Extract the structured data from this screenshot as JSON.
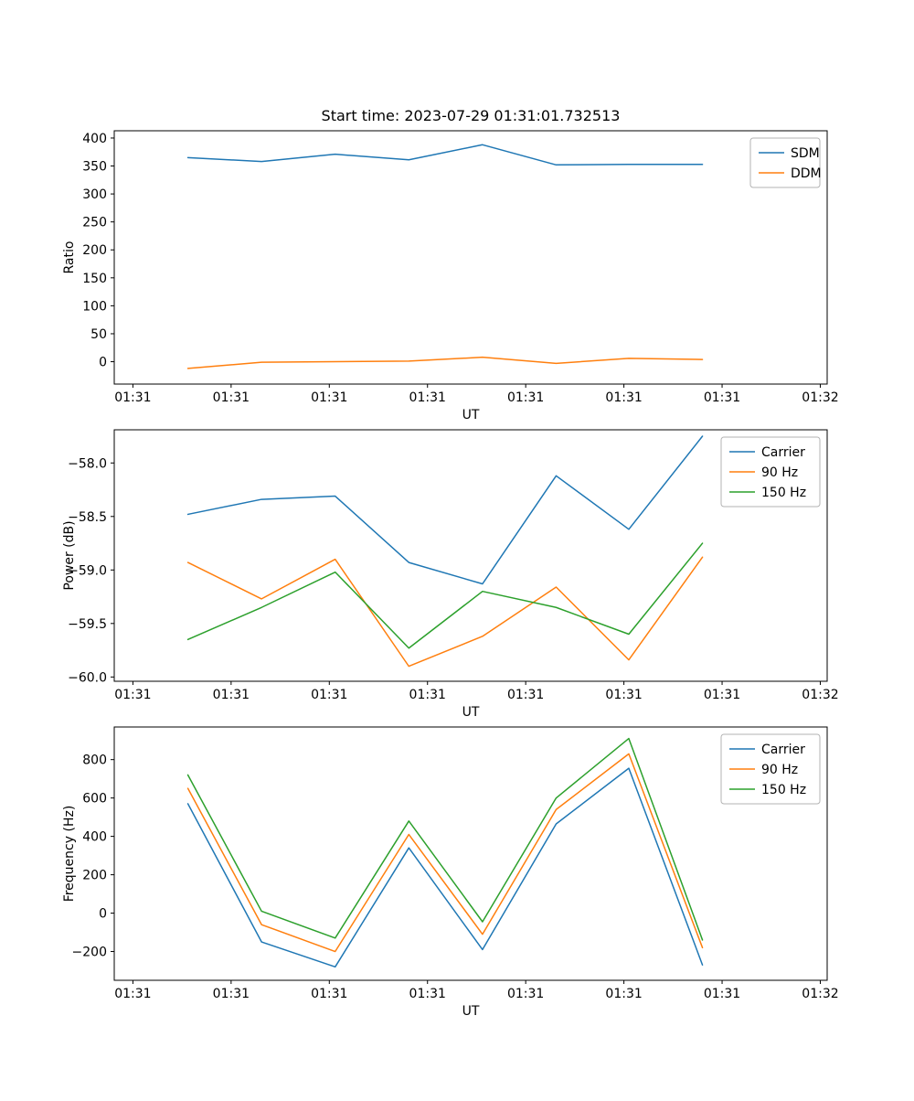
{
  "figure": {
    "title": "Start time: 2023-07-29 01:31:01.732513",
    "background_color": "#ffffff",
    "axes_color": "#000000"
  },
  "chart_data": [
    {
      "type": "line",
      "title": "Start time: 2023-07-29 01:31:01.732513",
      "xlabel": "UT",
      "ylabel": "Ratio",
      "legend_position": "upper right",
      "grid": false,
      "x": [
        0.56,
        1.31,
        2.06,
        2.81,
        3.56,
        4.31,
        5.05,
        5.8
      ],
      "xlim": [
        -0.19,
        7.07
      ],
      "ylim": [
        -40,
        413
      ],
      "xtick_positions": [
        0,
        1,
        2,
        3,
        4,
        5,
        6,
        7
      ],
      "xtick_labels": [
        "01:31",
        "01:31",
        "01:31",
        "01:31",
        "01:31",
        "01:31",
        "01:31",
        "01:32"
      ],
      "ytick_values": [
        0,
        50,
        100,
        150,
        200,
        250,
        300,
        350,
        400
      ],
      "ytick_labels": [
        "0",
        "50",
        "100",
        "150",
        "200",
        "250",
        "300",
        "350",
        "400"
      ],
      "series": [
        {
          "name": "SDM",
          "color": "#1f77b4",
          "values": [
            365,
            358,
            371,
            361,
            388,
            352,
            353,
            353
          ]
        },
        {
          "name": "DDM",
          "color": "#ff7f0e",
          "values": [
            -12,
            -1,
            0,
            1,
            8,
            -3,
            6,
            4
          ]
        }
      ]
    },
    {
      "type": "line",
      "title": "",
      "xlabel": "UT",
      "ylabel": "Power (dB)",
      "legend_position": "upper right",
      "grid": false,
      "x": [
        0.56,
        1.31,
        2.06,
        2.81,
        3.56,
        4.31,
        5.05,
        5.8
      ],
      "xlim": [
        -0.19,
        7.07
      ],
      "ylim": [
        -60.04,
        -57.69
      ],
      "xtick_positions": [
        0,
        1,
        2,
        3,
        4,
        5,
        6,
        7
      ],
      "xtick_labels": [
        "01:31",
        "01:31",
        "01:31",
        "01:31",
        "01:31",
        "01:31",
        "01:31",
        "01:32"
      ],
      "ytick_values": [
        -60.0,
        -59.5,
        -59.0,
        -58.5,
        -58.0
      ],
      "ytick_labels": [
        "−60.0",
        "−59.5",
        "−59.0",
        "−58.5",
        "−58.0"
      ],
      "series": [
        {
          "name": "Carrier",
          "color": "#1f77b4",
          "values": [
            -58.48,
            -58.34,
            -58.31,
            -58.93,
            -59.13,
            -58.12,
            -58.62,
            -57.75
          ]
        },
        {
          "name": "90 Hz",
          "color": "#ff7f0e",
          "values": [
            -58.93,
            -59.27,
            -58.9,
            -59.9,
            -59.62,
            -59.16,
            -59.84,
            -58.88
          ]
        },
        {
          "name": "150 Hz",
          "color": "#2ca02c",
          "values": [
            -59.65,
            -59.35,
            -59.02,
            -59.73,
            -59.2,
            -59.35,
            -59.6,
            -58.75
          ]
        }
      ]
    },
    {
      "type": "line",
      "title": "",
      "xlabel": "UT",
      "ylabel": "Frequency (Hz)",
      "legend_position": "upper right",
      "grid": false,
      "x": [
        0.56,
        1.31,
        2.06,
        2.81,
        3.56,
        4.31,
        5.05,
        5.8
      ],
      "xlim": [
        -0.19,
        7.07
      ],
      "ylim": [
        -350,
        970
      ],
      "xtick_positions": [
        0,
        1,
        2,
        3,
        4,
        5,
        6,
        7
      ],
      "xtick_labels": [
        "01:31",
        "01:31",
        "01:31",
        "01:31",
        "01:31",
        "01:31",
        "01:31",
        "01:32"
      ],
      "ytick_values": [
        -200,
        0,
        200,
        400,
        600,
        800
      ],
      "ytick_labels": [
        "−200",
        "0",
        "200",
        "400",
        "600",
        "800"
      ],
      "series": [
        {
          "name": "Carrier",
          "color": "#1f77b4",
          "values": [
            570,
            -150,
            -280,
            340,
            -190,
            465,
            755,
            -270
          ]
        },
        {
          "name": "90 Hz",
          "color": "#ff7f0e",
          "values": [
            650,
            -60,
            -200,
            410,
            -110,
            540,
            830,
            -180
          ]
        },
        {
          "name": "150 Hz",
          "color": "#2ca02c",
          "values": [
            720,
            10,
            -130,
            480,
            -45,
            600,
            910,
            -140
          ]
        }
      ]
    }
  ]
}
